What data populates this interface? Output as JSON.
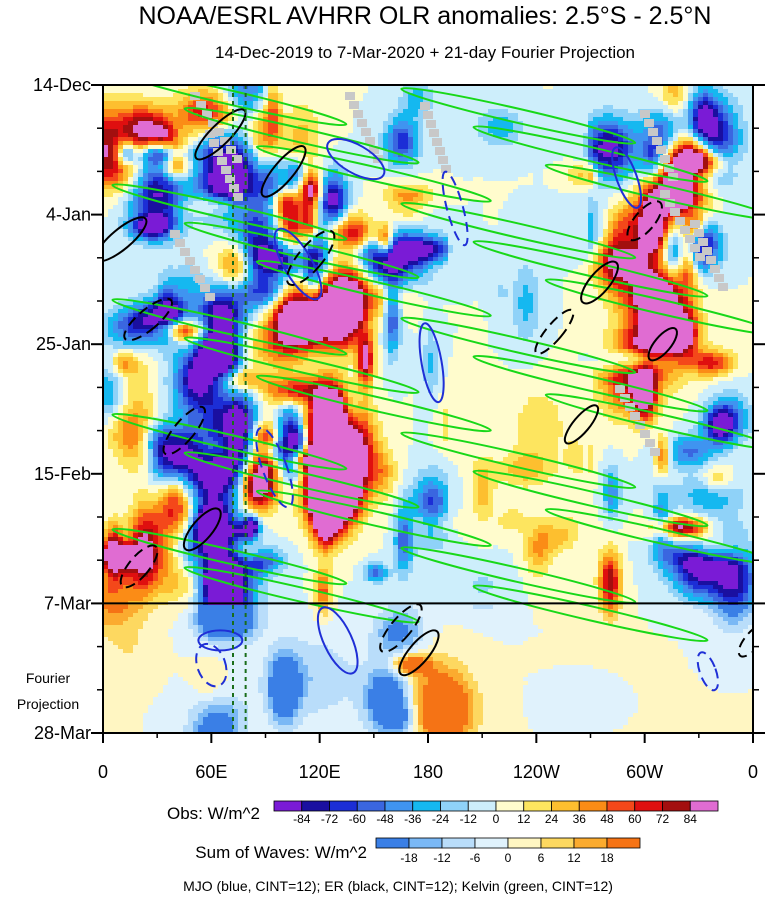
{
  "chart_data": {
    "type": "heatmap",
    "title": "NOAA/ESRL AVHRR OLR anomalies: 2.5°S - 2.5°N",
    "subtitle": "14-Dec-2019 to 7-Mar-2020 + 21-day Fourier Projection",
    "x_tick_labels": [
      "0",
      "60E",
      "120E",
      "180",
      "120W",
      "60W",
      "0"
    ],
    "x_tick_degrees": [
      0,
      60,
      120,
      180,
      240,
      300,
      360
    ],
    "y_tick_labels": [
      "14-Dec",
      "4-Jan",
      "25-Jan",
      "15-Feb",
      "7-Mar",
      "28-Mar"
    ],
    "y_tick_days": [
      0,
      21,
      42,
      63,
      84,
      105
    ],
    "projection_label_line1": "Fourier",
    "projection_label_line2": "Projection",
    "projection_start_day": 84,
    "obs_colorbar": {
      "label": "Obs: W/m^2",
      "levels": [
        "-84",
        "-72",
        "-60",
        "-48",
        "-36",
        "-24",
        "-12",
        "0",
        "12",
        "24",
        "36",
        "48",
        "60",
        "72",
        "84"
      ],
      "colors": [
        "#7a1bd6",
        "#1a0fa0",
        "#1c2ed6",
        "#3a66e0",
        "#3f94f0",
        "#15b8f0",
        "#8fd2f8",
        "#cdeefb",
        "#fffccd",
        "#fde55f",
        "#fdbf2f",
        "#fb8c16",
        "#f4481a",
        "#df0f0f",
        "#a30f0f",
        "#e06cd2"
      ]
    },
    "waves_colorbar": {
      "label": "Sum of Waves: W/m^2",
      "levels": [
        "-18",
        "-12",
        "-6",
        "0",
        "6",
        "12",
        "18"
      ],
      "colors": [
        "#3a7fe6",
        "#7ab8f5",
        "#b9ddfa",
        "#e0f2fc",
        "#fff6c2",
        "#fdd860",
        "#fbab2f",
        "#f57315"
      ]
    },
    "footer": "MJO (blue, CINT=12); ER (black, CINT=12); Kelvin (green, CINT=12)",
    "contour_colors": {
      "mjo": "#1f2fd6",
      "er": "#000000",
      "kelvin": "#18d818"
    },
    "reference_lines_deg": [
      72,
      79
    ]
  }
}
